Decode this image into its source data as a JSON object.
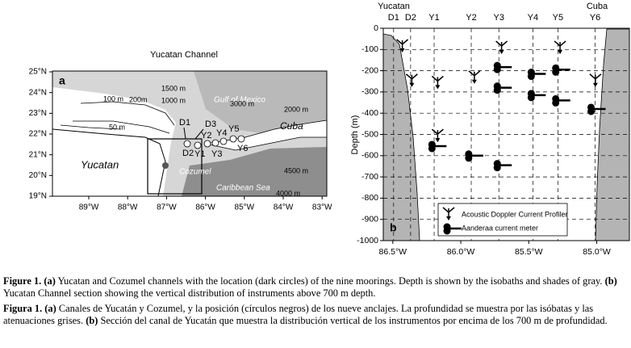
{
  "panel_a": {
    "title": "Yucatan Channel",
    "panel_label": "a",
    "xticks": [
      {
        "value": -89,
        "label": "89°W"
      },
      {
        "value": -88,
        "label": "88°W"
      },
      {
        "value": -87,
        "label": "87°W"
      },
      {
        "value": -86,
        "label": "86°W"
      },
      {
        "value": -85,
        "label": "85°W"
      },
      {
        "value": -84,
        "label": "84°W"
      },
      {
        "value": -83,
        "label": "83°W"
      }
    ],
    "yticks": [
      {
        "value": 19,
        "label": "19°N"
      },
      {
        "value": 20,
        "label": "20°N"
      },
      {
        "value": 21,
        "label": "21°N"
      },
      {
        "value": 22,
        "label": "22°N"
      },
      {
        "value": 23,
        "label": "23°N"
      },
      {
        "value": 24,
        "label": "24°N"
      },
      {
        "value": 25,
        "label": "25°N"
      }
    ],
    "places": [
      "Gulf of Mexico",
      "Caribbean Sea",
      "Yucatan",
      "Cuba",
      "Cozumel"
    ],
    "isobaths": [
      "100 m",
      "200m",
      "1500 m",
      "1000 m",
      "3000 m",
      "2000 m",
      "50 m",
      "4500 m",
      "4000 m"
    ],
    "stations": [
      "D1",
      "D2",
      "D3",
      "Y1",
      "Y2",
      "Y3",
      "Y4",
      "Y5",
      "Y6"
    ]
  },
  "panel_b": {
    "type": "scatter",
    "panel_label": "b",
    "left_label": "Yucatan",
    "right_label": "Cuba",
    "ylabel": "Depth (m)",
    "xlim": [
      -86.57,
      -84.76
    ],
    "ylim": [
      -1000,
      0
    ],
    "xticks": [
      {
        "value": -86.5,
        "label": "86.5°W"
      },
      {
        "value": -86.0,
        "label": "86.0°W"
      },
      {
        "value": -85.5,
        "label": "85.5°W"
      },
      {
        "value": -85.0,
        "label": "85.0°W"
      }
    ],
    "yticks": [
      -1000,
      -900,
      -800,
      -700,
      -600,
      -500,
      -400,
      -300,
      -200,
      -100,
      0
    ],
    "grid": true,
    "moorings": [
      {
        "name": "D1",
        "lon": -86.494
      },
      {
        "name": "D2",
        "lon": -86.369
      },
      {
        "name": "Y1",
        "lon": -86.196
      },
      {
        "name": "Y2",
        "lon": -85.923
      },
      {
        "name": "Y3",
        "lon": -85.72
      },
      {
        "name": "Y4",
        "lon": -85.47
      },
      {
        "name": "Y5",
        "lon": -85.286
      },
      {
        "name": "Y6",
        "lon": -85.012
      }
    ],
    "series": [
      {
        "name": "Acoustic Doppler Current Profiler",
        "color": "#000000",
        "x": [
          -86.43,
          -86.36,
          -86.17,
          -85.9,
          -85.7,
          -85.27,
          -85.01,
          -86.17
        ],
        "values": [
          -87,
          -250,
          -260,
          -235,
          -95,
          -95,
          -250,
          -510
        ]
      },
      {
        "name": "Aanderaa current meter",
        "color": "#000000",
        "x": [
          -86.2,
          -85.93,
          -85.72,
          -85.72,
          -85.72,
          -85.47,
          -85.47,
          -85.29,
          -85.29,
          -85.03
        ],
        "values": [
          -555,
          -600,
          -183,
          -280,
          -645,
          -215,
          -315,
          -195,
          -340,
          -380
        ]
      }
    ]
  },
  "caption_en": {
    "label": "Figure 1.",
    "a": "(a)",
    "text_a": "Yucatan and Cozumel channels with the location (dark circles) of the nine moorings. Depth is shown by the isobaths and shades of gray.",
    "b": "(b)",
    "text_b": "Yucatan Channel section showing the vertical distribution of instruments above 700 m depth."
  },
  "caption_es": {
    "label": "Figura 1.",
    "a": "(a)",
    "text_a": "Canales de Yucatán y Cozumel, y la posición (círculos negros) de los nueve anclajes. La profundidad se muestra por las isóbatas y las atenuaciones grises.",
    "b": "(b)",
    "text_b": "Sección del canal de Yucatán que muestra la distribución vertical de los instrumentos por encima de los 700 m de profundidad."
  }
}
